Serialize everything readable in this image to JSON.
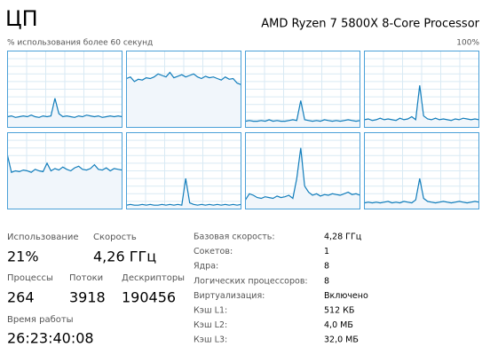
{
  "header": {
    "title": "ЦП",
    "processor": "AMD Ryzen 7 5800X 8-Core Processor",
    "subtitle": "% использования более 60 секунд",
    "max_label": "100%"
  },
  "chart_data": [
    {
      "type": "line",
      "color": "#117dbb",
      "ylim": [
        0,
        100
      ],
      "values": [
        14,
        15,
        13,
        14,
        15,
        14,
        16,
        14,
        13,
        15,
        14,
        15,
        38,
        18,
        14,
        15,
        14,
        13,
        15,
        14,
        16,
        15,
        14,
        15,
        13,
        14,
        15,
        14,
        15,
        14
      ]
    },
    {
      "type": "line",
      "color": "#117dbb",
      "ylim": [
        0,
        100
      ],
      "values": [
        64,
        66,
        60,
        63,
        62,
        65,
        64,
        66,
        70,
        68,
        66,
        72,
        65,
        67,
        69,
        66,
        68,
        70,
        66,
        64,
        67,
        65,
        66,
        64,
        62,
        66,
        63,
        64,
        58,
        56
      ]
    },
    {
      "type": "line",
      "color": "#117dbb",
      "ylim": [
        0,
        100
      ],
      "values": [
        8,
        9,
        8,
        8,
        9,
        8,
        10,
        8,
        9,
        8,
        8,
        9,
        10,
        9,
        35,
        10,
        9,
        8,
        9,
        8,
        10,
        9,
        8,
        9,
        8,
        9,
        10,
        9,
        8,
        9
      ]
    },
    {
      "type": "line",
      "color": "#117dbb",
      "ylim": [
        0,
        100
      ],
      "values": [
        10,
        11,
        9,
        10,
        12,
        10,
        11,
        10,
        9,
        12,
        10,
        11,
        14,
        10,
        55,
        15,
        11,
        10,
        12,
        10,
        11,
        10,
        9,
        11,
        10,
        12,
        11,
        10,
        11,
        10
      ]
    },
    {
      "type": "line",
      "color": "#117dbb",
      "ylim": [
        0,
        100
      ],
      "values": [
        70,
        48,
        50,
        49,
        51,
        50,
        48,
        52,
        50,
        49,
        60,
        50,
        53,
        51,
        55,
        52,
        50,
        54,
        56,
        52,
        51,
        53,
        58,
        52,
        51,
        54,
        50,
        53,
        52,
        51
      ]
    },
    {
      "type": "line",
      "color": "#117dbb",
      "ylim": [
        0,
        100
      ],
      "values": [
        5,
        6,
        5,
        5,
        6,
        5,
        6,
        5,
        5,
        6,
        5,
        6,
        5,
        6,
        5,
        40,
        8,
        6,
        5,
        6,
        5,
        6,
        5,
        6,
        5,
        6,
        5,
        6,
        5,
        6
      ]
    },
    {
      "type": "line",
      "color": "#117dbb",
      "ylim": [
        0,
        100
      ],
      "values": [
        12,
        20,
        18,
        15,
        14,
        16,
        15,
        14,
        17,
        15,
        16,
        18,
        14,
        40,
        80,
        30,
        22,
        18,
        20,
        17,
        19,
        18,
        20,
        19,
        18,
        20,
        22,
        19,
        20,
        18
      ]
    },
    {
      "type": "line",
      "color": "#117dbb",
      "ylim": [
        0,
        100
      ],
      "values": [
        8,
        9,
        8,
        9,
        8,
        9,
        10,
        8,
        9,
        8,
        10,
        9,
        8,
        12,
        40,
        14,
        10,
        9,
        8,
        9,
        10,
        9,
        8,
        9,
        10,
        9,
        8,
        9,
        10,
        9
      ]
    }
  ],
  "stats": {
    "usage": {
      "label": "Использование",
      "value": "21%"
    },
    "speed": {
      "label": "Скорость",
      "value": "4,26 ГГц"
    },
    "processes": {
      "label": "Процессы",
      "value": "264"
    },
    "threads": {
      "label": "Потоки",
      "value": "3918"
    },
    "handles": {
      "label": "Дескрипторы",
      "value": "190456"
    },
    "uptime": {
      "label": "Время работы",
      "value": "26:23:40:08"
    }
  },
  "details": [
    {
      "label": "Базовая скорость:",
      "value": "4,28 ГГц"
    },
    {
      "label": "Сокетов:",
      "value": "1"
    },
    {
      "label": "Ядра:",
      "value": "8"
    },
    {
      "label": "Логических процессоров:",
      "value": "8"
    },
    {
      "label": "Виртуализация:",
      "value": "Включено"
    },
    {
      "label": "Кэш L1:",
      "value": "512 КБ"
    },
    {
      "label": "Кэш L2:",
      "value": "4,0 МБ"
    },
    {
      "label": "Кэш L3:",
      "value": "32,0 МБ"
    }
  ]
}
